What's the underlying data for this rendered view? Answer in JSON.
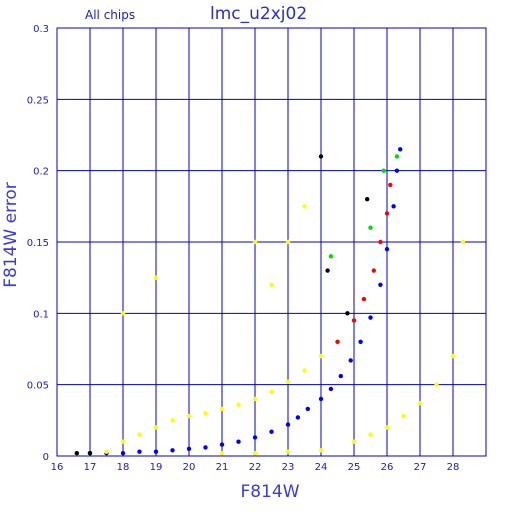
{
  "chart_data": {
    "type": "scatter",
    "title": "lmc_u2xj02",
    "subtitle": "All chips",
    "xlabel": "F814W",
    "ylabel": "F814W error",
    "xlim": [
      16,
      29
    ],
    "ylim": [
      0,
      0.3
    ],
    "x_ticks": [
      "16",
      "17",
      "18",
      "19",
      "20",
      "21",
      "22",
      "23",
      "24",
      "25",
      "26",
      "27",
      "28"
    ],
    "y_ticks": [
      "0",
      "0.05",
      "0.1",
      "0.15",
      "0.2",
      "0.25",
      "0.3"
    ],
    "grid": true,
    "colors": {
      "axis": "#0000cc",
      "grid": "#0000cc",
      "blue_series": "#0000ff",
      "yellow_series": "#ffff00",
      "red_series": "#ff0000",
      "green_series": "#00dd00",
      "black_series": "#000000"
    },
    "series": [
      {
        "color": "#0000ff",
        "points": [
          [
            17.0,
            0.002
          ],
          [
            17.5,
            0.002
          ],
          [
            18.0,
            0.002
          ],
          [
            18.5,
            0.003
          ],
          [
            19.0,
            0.003
          ],
          [
            19.5,
            0.004
          ],
          [
            20.0,
            0.005
          ],
          [
            20.5,
            0.006
          ],
          [
            21.0,
            0.008
          ],
          [
            21.5,
            0.01
          ],
          [
            22.0,
            0.013
          ],
          [
            22.5,
            0.017
          ],
          [
            23.0,
            0.022
          ],
          [
            23.3,
            0.027
          ],
          [
            23.6,
            0.033
          ],
          [
            24.0,
            0.04
          ],
          [
            24.3,
            0.047
          ],
          [
            24.6,
            0.056
          ],
          [
            24.9,
            0.067
          ],
          [
            25.2,
            0.08
          ],
          [
            25.5,
            0.097
          ],
          [
            25.8,
            0.12
          ],
          [
            26.0,
            0.145
          ],
          [
            26.2,
            0.175
          ],
          [
            26.3,
            0.2
          ],
          [
            26.4,
            0.215
          ]
        ]
      },
      {
        "color": "#ffff00",
        "points": [
          [
            17.5,
            0.003
          ],
          [
            18.0,
            0.01
          ],
          [
            18.5,
            0.015
          ],
          [
            19.0,
            0.02
          ],
          [
            19.5,
            0.025
          ],
          [
            20.0,
            0.028
          ],
          [
            20.5,
            0.03
          ],
          [
            21.0,
            0.033
          ],
          [
            21.5,
            0.036
          ],
          [
            22.0,
            0.04
          ],
          [
            22.5,
            0.045
          ],
          [
            23.0,
            0.052
          ],
          [
            23.5,
            0.06
          ],
          [
            24.0,
            0.07
          ],
          [
            22.5,
            0.12
          ],
          [
            23.0,
            0.15
          ],
          [
            23.5,
            0.175
          ],
          [
            22.0,
            0.15
          ],
          [
            19.0,
            0.125
          ],
          [
            18.0,
            0.1
          ],
          [
            21.0,
            0.002
          ],
          [
            22.0,
            0.002
          ],
          [
            23.0,
            0.003
          ],
          [
            24.0,
            0.004
          ],
          [
            25.0,
            0.01
          ],
          [
            25.5,
            0.015
          ],
          [
            26.0,
            0.02
          ],
          [
            26.5,
            0.028
          ],
          [
            27.0,
            0.037
          ],
          [
            27.5,
            0.05
          ],
          [
            28.0,
            0.07
          ],
          [
            28.3,
            0.15
          ]
        ]
      },
      {
        "color": "#ff0000",
        "points": [
          [
            24.5,
            0.08
          ],
          [
            25.0,
            0.095
          ],
          [
            25.3,
            0.11
          ],
          [
            25.6,
            0.13
          ],
          [
            25.8,
            0.15
          ],
          [
            26.0,
            0.17
          ],
          [
            26.1,
            0.19
          ]
        ]
      },
      {
        "color": "#00dd00",
        "points": [
          [
            24.3,
            0.14
          ],
          [
            25.5,
            0.16
          ],
          [
            25.9,
            0.2
          ],
          [
            26.3,
            0.21
          ]
        ]
      },
      {
        "color": "#000000",
        "points": [
          [
            16.6,
            0.002
          ],
          [
            17.0,
            0.002
          ],
          [
            24.0,
            0.21
          ],
          [
            24.2,
            0.13
          ],
          [
            24.8,
            0.1
          ],
          [
            25.4,
            0.18
          ]
        ]
      }
    ]
  }
}
